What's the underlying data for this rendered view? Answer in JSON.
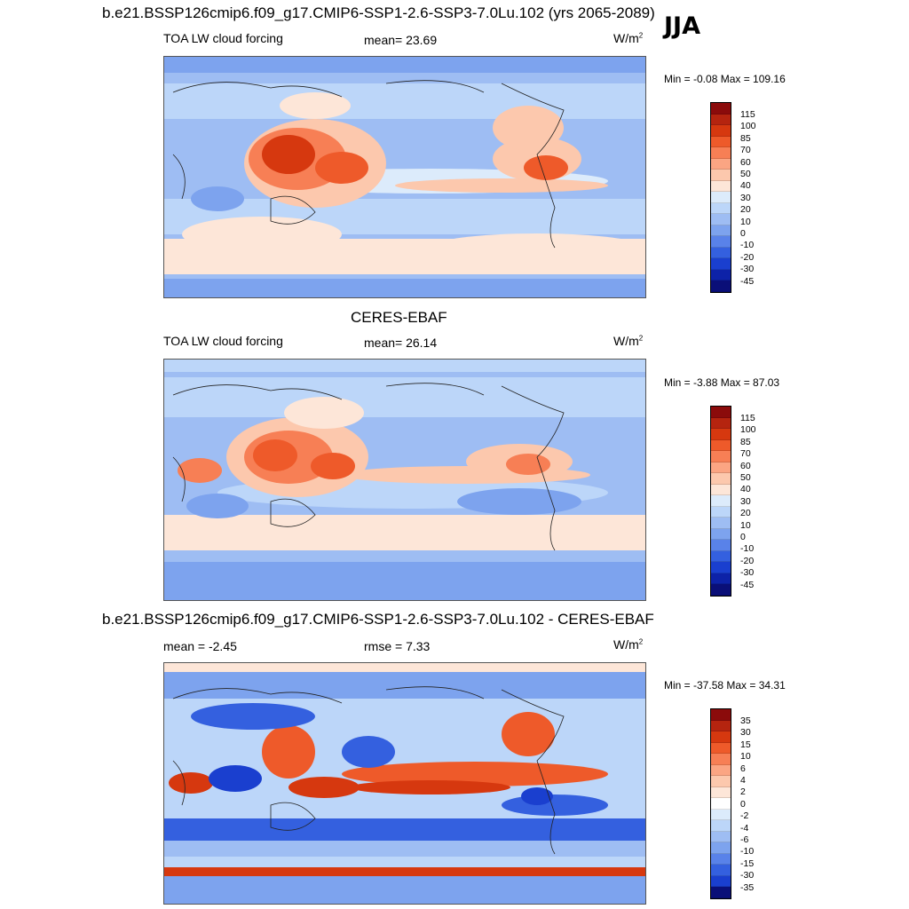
{
  "panel1": {
    "title": "b.e21.BSSP126cmip6.f09_g17.CMIP6-SSP1-2.6-SSP3-7.0Lu.102 (yrs 2065-2089)",
    "season": "JJA",
    "variable": "TOA LW cloud forcing",
    "mean_label": "mean=  23.69",
    "units": "W/m",
    "units_sup": "2",
    "minmax": "Min =  -0.08 Max = 109.16",
    "ticks": [
      "115",
      "100",
      "85",
      "70",
      "60",
      "50",
      "40",
      "30",
      "20",
      "10",
      "0",
      "-10",
      "-20",
      "-30",
      "-45"
    ]
  },
  "panel2": {
    "title": "CERES-EBAF",
    "variable": "TOA LW cloud forcing",
    "mean_label": "mean=  26.14",
    "units": "W/m",
    "units_sup": "2",
    "minmax": "Min =  -3.88 Max =  87.03",
    "ticks": [
      "115",
      "100",
      "85",
      "70",
      "60",
      "50",
      "40",
      "30",
      "20",
      "10",
      "0",
      "-10",
      "-20",
      "-30",
      "-45"
    ]
  },
  "panel3": {
    "title": "b.e21.BSSP126cmip6.f09_g17.CMIP6-SSP1-2.6-SSP3-7.0Lu.102 - CERES-EBAF",
    "mean_label": "mean =  -2.45",
    "rmse_label": "rmse =   7.33",
    "units": "W/m",
    "units_sup": "2",
    "minmax": "Min = -37.58 Max =  34.31",
    "ticks": [
      "35",
      "30",
      "15",
      "10",
      "6",
      "4",
      "2",
      "0",
      "-2",
      "-4",
      "-6",
      "-10",
      "-15",
      "-30",
      "-35"
    ]
  },
  "colors": {
    "scale": [
      "#8b0b0b",
      "#b5240f",
      "#d6380f",
      "#ee5a2a",
      "#f77f55",
      "#fba583",
      "#fcc8ad",
      "#fde6d8",
      "#dcebfb",
      "#bcd6f9",
      "#9ebdf3",
      "#7da3ee",
      "#5982e9",
      "#3460df",
      "#1a3fcf",
      "#0d22a8",
      "#0a0f78"
    ],
    "diff_scale": [
      "#8b0b0b",
      "#b5240f",
      "#d6380f",
      "#ee5a2a",
      "#f77f55",
      "#fba583",
      "#fcc8ad",
      "#fde6d8",
      "#ffffff",
      "#dcebfb",
      "#bcd6f9",
      "#9ebdf3",
      "#7da3ee",
      "#5982e9",
      "#3460df",
      "#1a3fcf",
      "#0a0f78"
    ]
  }
}
